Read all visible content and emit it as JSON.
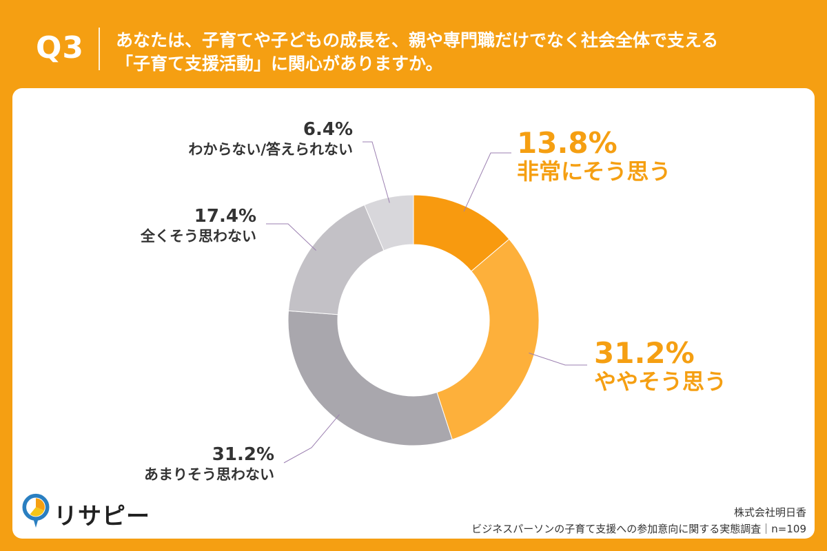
{
  "header": {
    "qnum": "Q3",
    "question_line1": "あなたは、子育てや子どもの成長を、親や専門職だけでなく社会全体で支える",
    "question_line2": "「子育て支援活動」に関心がありますか。"
  },
  "chart_data": {
    "type": "pie",
    "donut": true,
    "slices": [
      {
        "label": "非常にそう思う",
        "value": 13.8,
        "display": "13.8%",
        "color": "#f89a0f",
        "emphasis": true
      },
      {
        "label": "ややそう思う",
        "value": 31.2,
        "display": "31.2%",
        "color": "#fdb03b",
        "emphasis": true
      },
      {
        "label": "あまりそう思わない",
        "value": 31.2,
        "display": "31.2%",
        "color": "#a9a7ad",
        "emphasis": false
      },
      {
        "label": "全くそう思わない",
        "value": 17.4,
        "display": "17.4%",
        "color": "#c3c1c6",
        "emphasis": false
      },
      {
        "label": "わからない/答えられない",
        "value": 6.4,
        "display": "6.4%",
        "color": "#d8d7db",
        "emphasis": false
      }
    ]
  },
  "footer": {
    "company": "株式会社明日香",
    "survey": "ビジネスパーソンの子育て支援への参加意向に関する実態調査｜n=109"
  },
  "logo": {
    "text": "リサピー"
  },
  "colors": {
    "accent": "#f59f12",
    "emphasis_text": "#f59f12",
    "muted_text": "#333333",
    "leader": "#9b7fb0"
  }
}
